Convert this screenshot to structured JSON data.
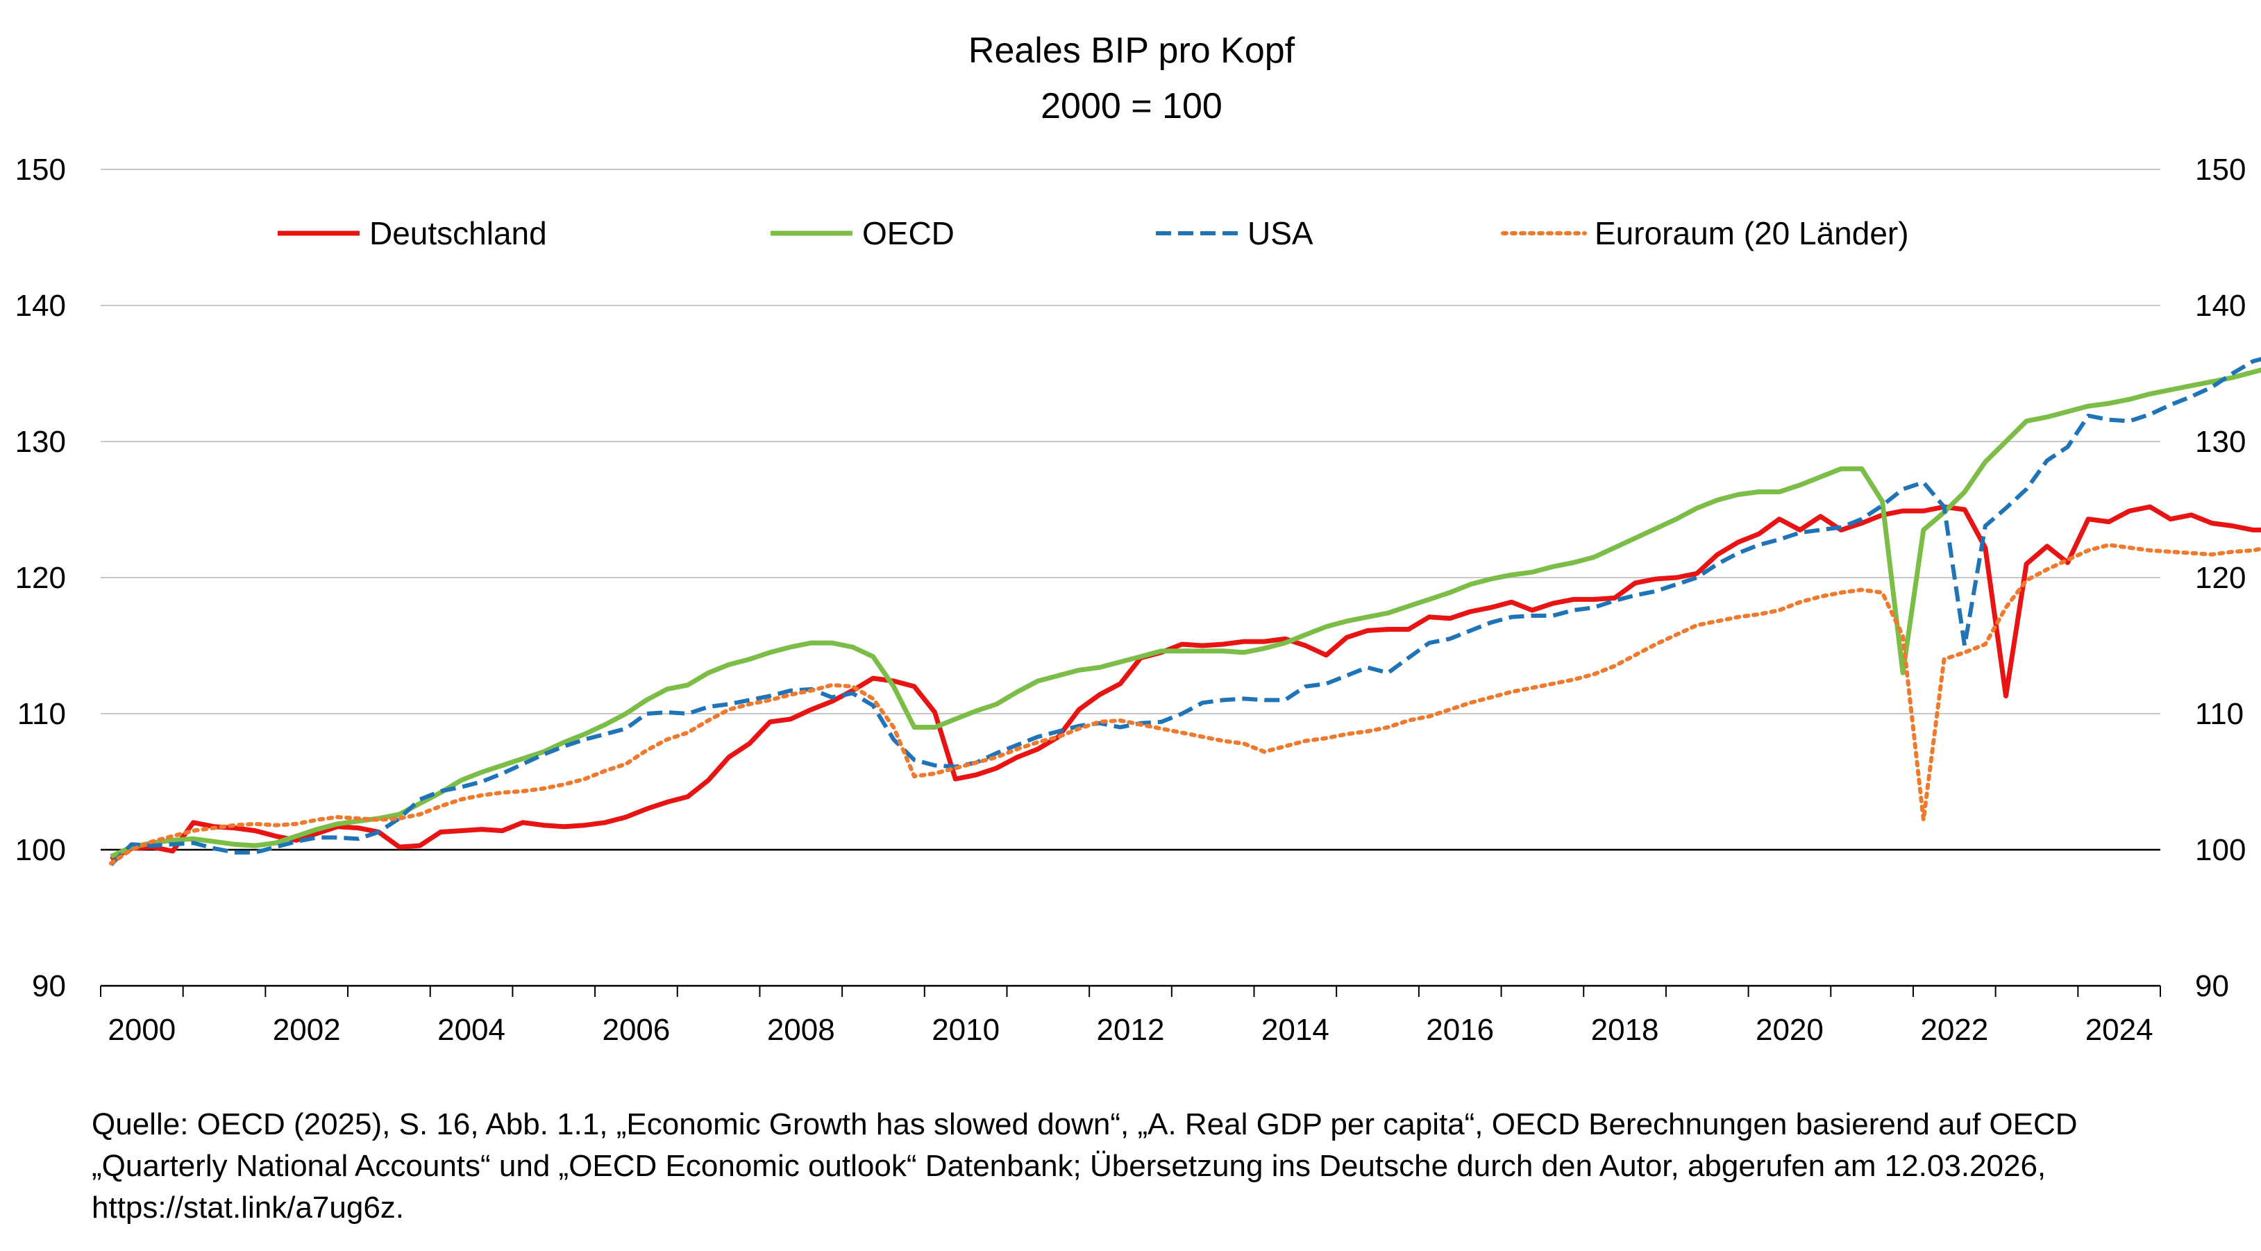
{
  "chart_data": {
    "type": "line",
    "title": "Reales BIP pro Kopf",
    "subtitle": "2000 = 100",
    "xlabel": "",
    "ylabel": "",
    "x_start": 2000,
    "x_step": 0.25,
    "xlim": [
      2000,
      2025
    ],
    "ylim": [
      90,
      150
    ],
    "x_ticks": [
      2000,
      2002,
      2004,
      2006,
      2008,
      2010,
      2012,
      2014,
      2016,
      2018,
      2020,
      2022,
      2024
    ],
    "y_ticks": [
      90,
      100,
      110,
      120,
      130,
      140,
      150
    ],
    "grid": true,
    "legend_position": "top",
    "series": [
      {
        "name": "Deutschland",
        "color": "#e81414",
        "style": "solid",
        "values": [
          99.3,
          100.1,
          100.2,
          99.9,
          102.0,
          101.7,
          101.6,
          101.4,
          101.0,
          100.7,
          101.2,
          101.7,
          101.6,
          101.3,
          100.2,
          100.3,
          101.3,
          101.4,
          101.5,
          101.4,
          102.0,
          101.8,
          101.7,
          101.8,
          102.0,
          102.4,
          103.0,
          103.5,
          103.9,
          105.1,
          106.8,
          107.8,
          109.4,
          109.6,
          110.3,
          110.9,
          111.7,
          112.6,
          112.4,
          112.0,
          110.1,
          105.2,
          105.5,
          106.0,
          106.8,
          107.4,
          108.3,
          110.3,
          111.4,
          112.2,
          114.1,
          114.5,
          115.1,
          115.0,
          115.1,
          115.3,
          115.3,
          115.5,
          115.0,
          114.3,
          115.6,
          116.1,
          116.2,
          116.2,
          117.1,
          117.0,
          117.5,
          117.8,
          118.2,
          117.6,
          118.1,
          118.4,
          118.4,
          118.5,
          119.6,
          119.9,
          120.0,
          120.3,
          121.7,
          122.6,
          123.2,
          124.3,
          123.5,
          124.5,
          123.5,
          124.0,
          124.6,
          124.9,
          124.9,
          125.2,
          125.0,
          122.2,
          111.3,
          121.0,
          122.3,
          121.1,
          124.3,
          124.1,
          124.9,
          125.2,
          124.3,
          124.6,
          124.0,
          123.8,
          123.5,
          123.5,
          122.9,
          123.1,
          122.7,
          122.8,
          122.6
        ]
      },
      {
        "name": "OECD",
        "color": "#7cbd48",
        "style": "solid",
        "values": [
          99.5,
          100.2,
          100.5,
          100.7,
          100.8,
          100.6,
          100.4,
          100.3,
          100.5,
          101.0,
          101.5,
          101.9,
          102.1,
          102.3,
          102.6,
          103.4,
          104.2,
          105.1,
          105.7,
          106.2,
          106.7,
          107.2,
          107.9,
          108.5,
          109.2,
          110.0,
          111.0,
          111.8,
          112.1,
          113.0,
          113.6,
          114.0,
          114.5,
          114.9,
          115.2,
          115.2,
          114.9,
          114.2,
          112.0,
          109.0,
          109.0,
          109.6,
          110.2,
          110.7,
          111.6,
          112.4,
          112.8,
          113.2,
          113.4,
          113.8,
          114.2,
          114.6,
          114.6,
          114.6,
          114.6,
          114.5,
          114.8,
          115.2,
          115.8,
          116.4,
          116.8,
          117.1,
          117.4,
          117.9,
          118.4,
          118.9,
          119.5,
          119.9,
          120.2,
          120.4,
          120.8,
          121.1,
          121.5,
          122.2,
          122.9,
          123.6,
          124.3,
          125.1,
          125.7,
          126.1,
          126.3,
          126.3,
          126.8,
          127.4,
          128.0,
          128.0,
          125.6,
          113.0,
          123.5,
          124.8,
          126.3,
          128.5,
          130.0,
          131.5,
          131.8,
          132.2,
          132.6,
          132.8,
          133.1,
          133.5,
          133.8,
          134.1,
          134.4,
          134.7,
          135.1,
          135.5,
          136.0
        ]
      },
      {
        "name": "USA",
        "color": "#1f73b7",
        "style": "dashed",
        "values": [
          98.9,
          100.4,
          100.3,
          100.4,
          100.5,
          100.1,
          99.8,
          99.8,
          100.2,
          100.6,
          100.9,
          100.9,
          100.8,
          101.3,
          102.3,
          103.7,
          104.3,
          104.6,
          105.0,
          105.6,
          106.3,
          107.0,
          107.6,
          108.1,
          108.5,
          108.9,
          110.0,
          110.1,
          110.0,
          110.5,
          110.7,
          111.0,
          111.3,
          111.7,
          111.8,
          111.2,
          111.5,
          110.6,
          108.1,
          106.6,
          106.2,
          106.1,
          106.4,
          107.1,
          107.7,
          108.3,
          108.7,
          109.1,
          109.3,
          109.0,
          109.3,
          109.4,
          110.0,
          110.8,
          111.0,
          111.1,
          111.0,
          111.0,
          112.0,
          112.2,
          112.8,
          113.4,
          113.0,
          114.1,
          115.2,
          115.5,
          116.1,
          116.7,
          117.1,
          117.2,
          117.2,
          117.6,
          117.8,
          118.3,
          118.7,
          119.0,
          119.5,
          120.0,
          121.0,
          121.8,
          122.4,
          122.8,
          123.3,
          123.5,
          123.7,
          124.3,
          125.3,
          126.5,
          127.0,
          125.2,
          115.0,
          123.8,
          125.1,
          126.5,
          128.6,
          129.6,
          131.9,
          131.6,
          131.5,
          132.0,
          132.7,
          133.3,
          134.0,
          135.0,
          135.9,
          136.3,
          136.9,
          137.5,
          138.2
        ]
      },
      {
        "name": "Euroraum  (20 Länder)",
        "color": "#ee7a2e",
        "style": "dotted",
        "values": [
          99.0,
          100.0,
          100.6,
          101.0,
          101.4,
          101.6,
          101.8,
          101.9,
          101.8,
          101.9,
          102.2,
          102.4,
          102.3,
          102.2,
          102.3,
          102.6,
          103.2,
          103.7,
          104.0,
          104.2,
          104.3,
          104.5,
          104.8,
          105.2,
          105.8,
          106.3,
          107.3,
          108.1,
          108.6,
          109.5,
          110.3,
          110.7,
          111.0,
          111.4,
          111.7,
          112.1,
          112.0,
          111.1,
          109.0,
          105.4,
          105.6,
          106.0,
          106.4,
          106.8,
          107.4,
          107.9,
          108.3,
          108.9,
          109.4,
          109.5,
          109.2,
          108.9,
          108.6,
          108.3,
          108.0,
          107.8,
          107.2,
          107.6,
          108.0,
          108.2,
          108.5,
          108.7,
          109.0,
          109.5,
          109.8,
          110.3,
          110.8,
          111.2,
          111.6,
          111.9,
          112.2,
          112.5,
          112.9,
          113.5,
          114.3,
          115.1,
          115.8,
          116.5,
          116.8,
          117.1,
          117.3,
          117.6,
          118.2,
          118.6,
          118.9,
          119.1,
          118.9,
          115.7,
          102.2,
          114.0,
          114.5,
          115.1,
          117.8,
          119.8,
          120.6,
          121.3,
          122.0,
          122.4,
          122.2,
          122.0,
          121.9,
          121.8,
          121.7,
          121.9,
          122.0,
          122.3,
          122.6
        ]
      }
    ]
  },
  "source_note": "Quelle: OECD (2025), S. 16, Abb. 1.1, „Economic Growth has slowed down“, „A. Real GDP per capita“, OECD Berechnungen basierend auf OECD „Quarterly National Accounts“ und „OECD Economic outlook“ Datenbank; Übersetzung ins Deutsche durch den Autor, abgerufen am 12.03.2026, https://stat.link/a7ug6z."
}
